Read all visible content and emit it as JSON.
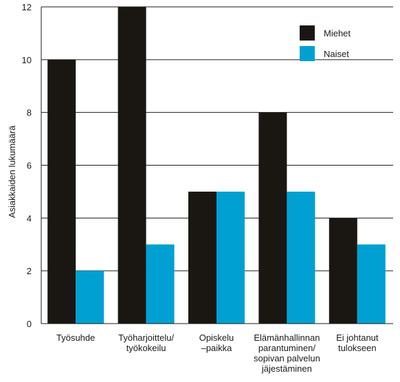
{
  "chart_data": {
    "type": "bar",
    "ylabel": "Asiakkaiden lukumäärä",
    "xlabel": "",
    "ylim": [
      0,
      12
    ],
    "yticks": [
      "0",
      "2",
      "4",
      "6",
      "8",
      "10",
      "12"
    ],
    "grid": true,
    "legend_position": "top-right",
    "categories": [
      [
        "Työsuhde"
      ],
      [
        "Työharjoittelu/",
        "työkokeilu"
      ],
      [
        "Opiskelu",
        "–paikka"
      ],
      [
        "Elämänhallinnan",
        "parantuminen/",
        "sopivan palvelun",
        "jäjestäminen"
      ],
      [
        "Ei johtanut",
        "tulokseen"
      ]
    ],
    "series": [
      {
        "name": "Miehet",
        "color": "#1a1713",
        "values": [
          10,
          12,
          5,
          8,
          4
        ]
      },
      {
        "name": "Naiset",
        "color": "#00a0d2",
        "values": [
          2,
          3,
          5,
          5,
          3
        ]
      }
    ]
  }
}
